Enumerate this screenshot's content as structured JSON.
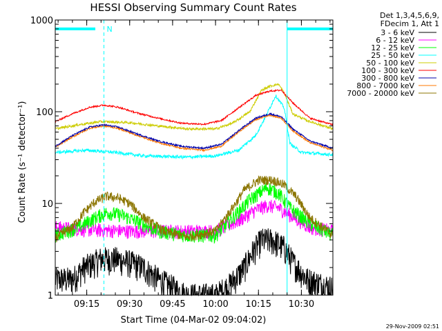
{
  "chart_data": {
    "type": "line",
    "title": "HESSI Observing Summary Count Rates",
    "xlabel": "Start Time (04-Mar-02 09:04:02)",
    "ylabel": "Count Rate (s⁻¹ detector⁻¹)",
    "y_scale": "log",
    "ylim": [
      1,
      1000
    ],
    "xlim": [
      "09:04",
      "10:41"
    ],
    "x_ticks": [
      "09:15",
      "09:30",
      "09:45",
      "10:00",
      "10:15",
      "10:30"
    ],
    "y_ticks": [
      "1",
      "10",
      "100",
      "1000"
    ],
    "grid": false,
    "legend_position": "right",
    "legend_header": [
      "Det 1,3,4,5,6,9,",
      "FDecim 1, Att 1"
    ],
    "series": [
      {
        "name": "3 - 6 keV",
        "color": "#000000",
        "x": [
          "09:04",
          "09:10",
          "09:14",
          "09:20",
          "09:25",
          "09:30",
          "09:35",
          "09:40",
          "09:50",
          "10:00",
          "10:05",
          "10:10",
          "10:13",
          "10:16",
          "10:20",
          "10:24",
          "10:27",
          "10:32",
          "10:41"
        ],
        "values": [
          1.5,
          1.5,
          2.0,
          2.5,
          2.5,
          2.3,
          2.0,
          1.5,
          1.0,
          1.0,
          1.3,
          2.0,
          3.0,
          4.0,
          4.0,
          3.3,
          2.3,
          1.5,
          1.2
        ]
      },
      {
        "name": "6 - 12 keV",
        "color": "#ff00ff",
        "x": [
          "09:04",
          "09:15",
          "09:30",
          "09:45",
          "10:00",
          "10:08",
          "10:14",
          "10:18",
          "10:22",
          "10:26",
          "10:33",
          "10:41"
        ],
        "values": [
          5.5,
          5.2,
          5.0,
          5.0,
          5.0,
          6.5,
          8.5,
          9.5,
          9.0,
          7.5,
          5.5,
          5.0
        ]
      },
      {
        "name": "12 - 25 keV",
        "color": "#00ff00",
        "x": [
          "09:04",
          "09:12",
          "09:18",
          "09:22",
          "09:27",
          "09:32",
          "09:40",
          "09:50",
          "10:00",
          "10:06",
          "10:12",
          "10:18",
          "10:22",
          "10:26",
          "10:33",
          "10:41"
        ],
        "values": [
          4.5,
          5.5,
          7.0,
          8.0,
          7.5,
          6.5,
          5.0,
          4.5,
          4.5,
          7.0,
          11.0,
          15.0,
          13.0,
          9.0,
          6.0,
          4.5
        ]
      },
      {
        "name": "25 - 50 keV",
        "color": "#00ffff",
        "x": [
          "09:04",
          "09:15",
          "09:25",
          "09:35",
          "09:50",
          "10:00",
          "10:08",
          "10:14",
          "10:18",
          "10:21",
          "10:24",
          "10:26",
          "10:30",
          "10:41"
        ],
        "values": [
          36,
          38,
          36,
          33,
          32,
          33,
          38,
          55,
          95,
          150,
          110,
          45,
          36,
          34
        ]
      },
      {
        "name": "50 - 100 keV",
        "color": "#cccc00",
        "x": [
          "09:04",
          "09:12",
          "09:20",
          "09:30",
          "09:40",
          "09:50",
          "10:00",
          "10:06",
          "10:12",
          "10:16",
          "10:19",
          "10:22",
          "10:24",
          "10:27",
          "10:32",
          "10:41"
        ],
        "values": [
          65,
          72,
          78,
          76,
          70,
          65,
          65,
          75,
          100,
          170,
          190,
          200,
          160,
          95,
          80,
          65
        ]
      },
      {
        "name": "100 - 300 keV",
        "color": "#ff0000",
        "x": [
          "09:04",
          "09:10",
          "09:16",
          "09:21",
          "09:26",
          "09:32",
          "09:40",
          "09:48",
          "09:56",
          "10:02",
          "10:08",
          "10:14",
          "10:19",
          "10:23",
          "10:27",
          "10:33",
          "10:41"
        ],
        "values": [
          78,
          95,
          112,
          118,
          112,
          98,
          85,
          75,
          73,
          80,
          110,
          150,
          168,
          172,
          125,
          85,
          72
        ]
      },
      {
        "name": "300 - 800 keV",
        "color": "#0000aa",
        "x": [
          "09:04",
          "09:10",
          "09:16",
          "09:21",
          "09:26",
          "09:32",
          "09:40",
          "09:48",
          "09:56",
          "10:02",
          "10:08",
          "10:14",
          "10:19",
          "10:23",
          "10:27",
          "10:33",
          "10:41"
        ],
        "values": [
          42,
          55,
          68,
          72,
          68,
          58,
          48,
          42,
          40,
          44,
          62,
          85,
          95,
          88,
          65,
          48,
          40
        ]
      },
      {
        "name": "800 - 7000 keV",
        "color": "#ff7700",
        "x": [
          "09:04",
          "09:10",
          "09:16",
          "09:21",
          "09:26",
          "09:32",
          "09:40",
          "09:48",
          "09:56",
          "10:02",
          "10:08",
          "10:14",
          "10:19",
          "10:23",
          "10:27",
          "10:33",
          "10:41"
        ],
        "values": [
          41,
          53,
          66,
          70,
          66,
          56,
          46,
          40,
          38,
          42,
          60,
          82,
          92,
          85,
          62,
          46,
          38
        ]
      },
      {
        "name": "7000 - 20000 keV",
        "color": "#8b7500",
        "x": [
          "09:04",
          "09:10",
          "09:14",
          "09:18",
          "09:22",
          "09:26",
          "09:30",
          "09:35",
          "09:42",
          "09:50",
          "10:00",
          "10:06",
          "10:10",
          "10:15",
          "10:20",
          "10:24",
          "10:28",
          "10:33",
          "10:41"
        ],
        "values": [
          4.2,
          5.5,
          8.0,
          10.5,
          12.0,
          11.5,
          10.0,
          7.0,
          5.0,
          4.3,
          5.0,
          9.0,
          14.0,
          18.0,
          18.0,
          16.0,
          12.0,
          7.0,
          4.5
        ]
      }
    ],
    "annotations": [
      {
        "type": "vline",
        "x": "09:04",
        "style": "solid",
        "color": "#00ffff"
      },
      {
        "type": "vline",
        "x": "09:21",
        "style": "dashed",
        "color": "#00ffff"
      },
      {
        "type": "vline",
        "x": "10:25",
        "style": "solid",
        "color": "#00ffff"
      },
      {
        "type": "vline",
        "x": "10:41",
        "style": "dashed",
        "color": "#00ffff"
      },
      {
        "type": "bar",
        "x0": "09:04",
        "x1": "09:18",
        "y": 800,
        "color": "#00ffff",
        "label": ""
      },
      {
        "type": "bar",
        "x0": "10:25",
        "x1": "10:41",
        "y": 800,
        "color": "#00ffff",
        "label": ""
      },
      {
        "type": "label",
        "x": "09:21",
        "y": 800,
        "text": "N",
        "color": "#00ffff"
      }
    ]
  },
  "footer_stamp": "29-Nov-2009 02:51"
}
